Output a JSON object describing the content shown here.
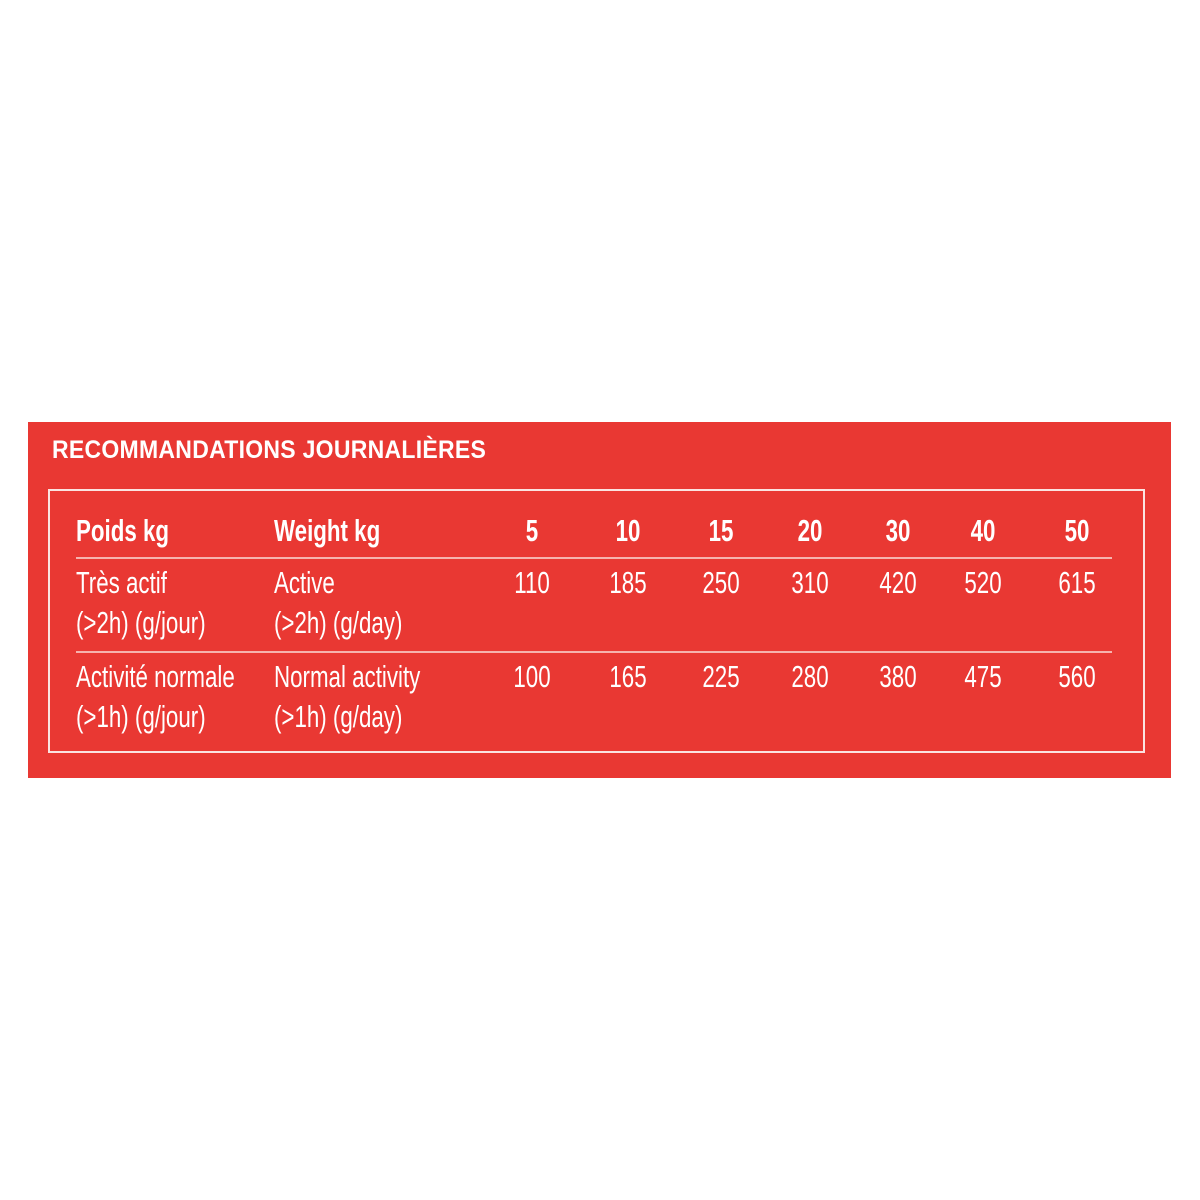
{
  "title": "RECOMMANDATIONS JOURNALIÈRES",
  "colors": {
    "background": "#e93833",
    "text": "#ffffff"
  },
  "table": {
    "header": {
      "col_fr": "Poids kg",
      "col_en": "Weight kg",
      "weights": [
        "5",
        "10",
        "15",
        "20",
        "30",
        "40",
        "50"
      ]
    },
    "rows": [
      {
        "fr_line1": "Très actif",
        "fr_line2": "(>2h) (g/jour)",
        "en_line1": "Active",
        "en_line2": "(>2h) (g/day)",
        "values": [
          "110",
          "185",
          "250",
          "310",
          "420",
          "520",
          "615"
        ]
      },
      {
        "fr_line1": "Activité normale",
        "fr_line2": "(>1h) (g/jour)",
        "en_line1": "Normal activity",
        "en_line2": "(>1h) (g/day)",
        "values": [
          "100",
          "165",
          "225",
          "280",
          "380",
          "475",
          "560"
        ]
      }
    ]
  }
}
